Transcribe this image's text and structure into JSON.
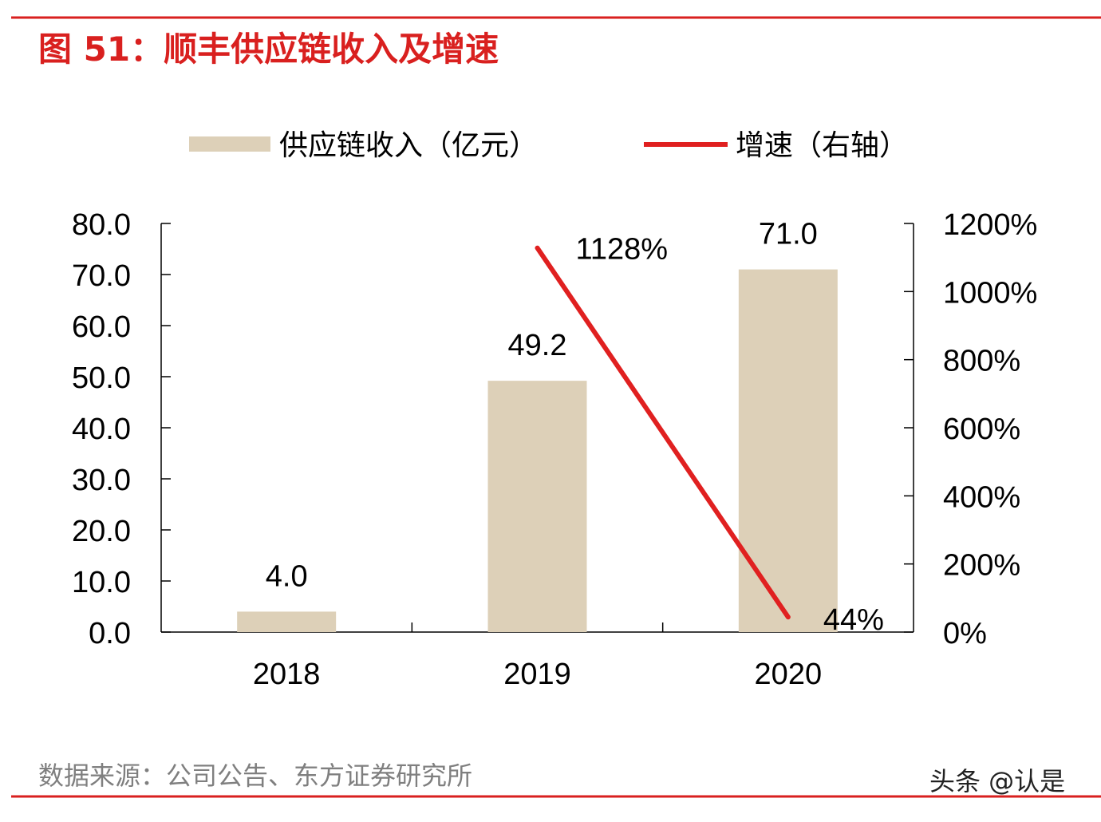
{
  "title": "图 51：顺丰供应链收入及增速",
  "source": "数据来源：公司公告、东方证券研究所",
  "watermark": "头条 @认是",
  "colors": {
    "accent": "#d9201f",
    "bar": "#ddd0b8",
    "line": "#e02020",
    "text": "#000000",
    "source_text": "#7f7f7f"
  },
  "chart_data": {
    "type": "bar",
    "categories": [
      "2018",
      "2019",
      "2020"
    ],
    "series": [
      {
        "name": "供应链收入（亿元）",
        "type": "bar",
        "axis": "left",
        "values": [
          4.0,
          49.2,
          71.0
        ],
        "labels": [
          "4.0",
          "49.2",
          "71.0"
        ]
      },
      {
        "name": "增速（右轴）",
        "type": "line",
        "axis": "right",
        "values": [
          null,
          1128,
          44
        ],
        "labels": [
          "",
          "1128%",
          "44%"
        ]
      }
    ],
    "ylim": [
      0,
      80
    ],
    "yticks": [
      "0.0",
      "10.0",
      "20.0",
      "30.0",
      "40.0",
      "50.0",
      "60.0",
      "70.0",
      "80.0"
    ],
    "y2lim": [
      0,
      1200
    ],
    "y2ticks": [
      "0%",
      "200%",
      "400%",
      "600%",
      "800%",
      "1000%",
      "1200%"
    ],
    "legend_position": "top",
    "grid": false
  }
}
